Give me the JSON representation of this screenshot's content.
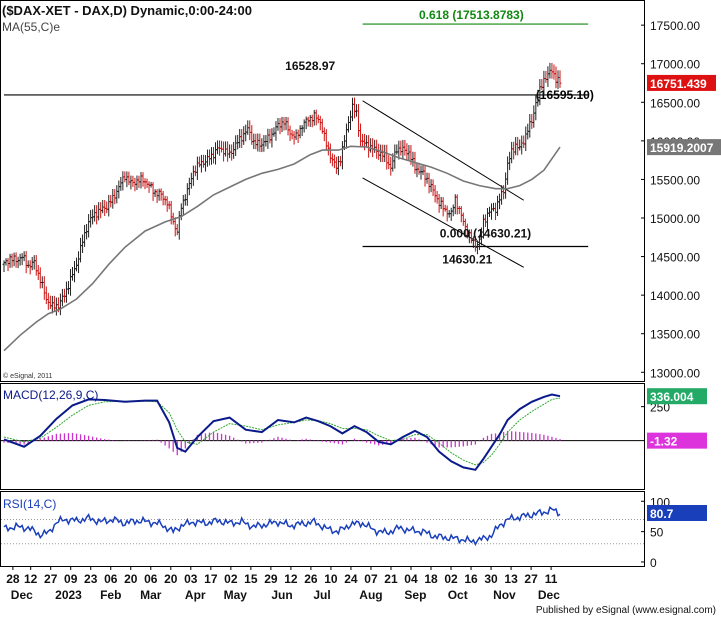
{
  "header": {
    "title": "($DAX-XET - DAX,D) Dynamic,0:00-24:00",
    "ma_label": "MA(55,C)e",
    "watermark": "© eSignal, 2011",
    "footer": "Published by eSignal (www.esignal.com)"
  },
  "chart_data": [
    {
      "panel": "price",
      "type": "ohlc",
      "ylim": [
        12900,
        17800
      ],
      "y_ticks": [
        "17500.00",
        "17000.00",
        "16500.00",
        "16000.00",
        "15500.00",
        "15000.00",
        "14500.00",
        "14000.00",
        "13500.00",
        "13000.00"
      ],
      "y_tick_values": [
        17500,
        17000,
        16500,
        16000,
        15500,
        15000,
        14500,
        14000,
        13500,
        13000
      ],
      "close_path": [
        [
          0,
          14400
        ],
        [
          3,
          14480
        ],
        [
          6,
          14450
        ],
        [
          9,
          14500
        ],
        [
          12,
          14380
        ],
        [
          15,
          14420
        ],
        [
          18,
          14200
        ],
        [
          21,
          13950
        ],
        [
          24,
          13850
        ],
        [
          27,
          13870
        ],
        [
          30,
          14000
        ],
        [
          33,
          14200
        ],
        [
          36,
          14400
        ],
        [
          39,
          14700
        ],
        [
          42,
          14950
        ],
        [
          45,
          15050
        ],
        [
          48,
          15100
        ],
        [
          51,
          15150
        ],
        [
          54,
          15250
        ],
        [
          57,
          15400
        ],
        [
          60,
          15550
        ],
        [
          63,
          15450
        ],
        [
          66,
          15480
        ],
        [
          69,
          15500
        ],
        [
          72,
          15420
        ],
        [
          75,
          15330
        ],
        [
          78,
          15300
        ],
        [
          81,
          15200
        ],
        [
          84,
          14950
        ],
        [
          86,
          14820
        ],
        [
          88,
          15150
        ],
        [
          91,
          15350
        ],
        [
          94,
          15600
        ],
        [
          97,
          15700
        ],
        [
          100,
          15740
        ],
        [
          103,
          15800
        ],
        [
          106,
          15900
        ],
        [
          109,
          15880
        ],
        [
          112,
          15820
        ],
        [
          115,
          15950
        ],
        [
          118,
          16050
        ],
        [
          121,
          16150
        ],
        [
          124,
          15980
        ],
        [
          127,
          15950
        ],
        [
          130,
          16000
        ],
        [
          133,
          16080
        ],
        [
          136,
          16200
        ],
        [
          139,
          16250
        ],
        [
          142,
          16100
        ],
        [
          145,
          16050
        ],
        [
          148,
          16200
        ],
        [
          151,
          16280
        ],
        [
          154,
          16320
        ],
        [
          157,
          16250
        ],
        [
          160,
          15950
        ],
        [
          163,
          15750
        ],
        [
          165,
          15650
        ],
        [
          167,
          15780
        ],
        [
          169,
          16000
        ],
        [
          171,
          16250
        ],
        [
          173,
          16440
        ],
        [
          175,
          16350
        ],
        [
          177,
          16000
        ],
        [
          180,
          15950
        ],
        [
          183,
          15900
        ],
        [
          186,
          15850
        ],
        [
          189,
          15800
        ],
        [
          192,
          15650
        ],
        [
          195,
          15900
        ],
        [
          198,
          15880
        ],
        [
          201,
          15850
        ],
        [
          204,
          15650
        ],
        [
          207,
          15600
        ],
        [
          210,
          15500
        ],
        [
          213,
          15350
        ],
        [
          216,
          15200
        ],
        [
          219,
          15100
        ],
        [
          222,
          15050
        ],
        [
          224,
          15250
        ],
        [
          226,
          15100
        ],
        [
          228,
          14950
        ],
        [
          230,
          14820
        ],
        [
          232,
          14720
        ],
        [
          234,
          14650
        ],
        [
          236,
          14700
        ],
        [
          238,
          14950
        ],
        [
          240,
          15050
        ],
        [
          242,
          15100
        ],
        [
          244,
          15120
        ],
        [
          246,
          15250
        ],
        [
          248,
          15350
        ],
        [
          250,
          15700
        ],
        [
          252,
          15850
        ],
        [
          254,
          15950
        ],
        [
          256,
          15900
        ],
        [
          258,
          16000
        ],
        [
          260,
          16150
        ],
        [
          262,
          16250
        ],
        [
          264,
          16500
        ],
        [
          266,
          16650
        ],
        [
          268,
          16800
        ],
        [
          270,
          16850
        ],
        [
          272,
          16920
        ],
        [
          274,
          16800
        ],
        [
          276,
          16751
        ]
      ],
      "ma55_path": [
        [
          0,
          13280
        ],
        [
          8,
          13480
        ],
        [
          16,
          13650
        ],
        [
          22,
          13760
        ],
        [
          28,
          13820
        ],
        [
          36,
          13950
        ],
        [
          44,
          14150
        ],
        [
          52,
          14400
        ],
        [
          60,
          14620
        ],
        [
          70,
          14830
        ],
        [
          80,
          14950
        ],
        [
          88,
          15020
        ],
        [
          96,
          15150
        ],
        [
          104,
          15300
        ],
        [
          112,
          15400
        ],
        [
          120,
          15500
        ],
        [
          128,
          15580
        ],
        [
          136,
          15630
        ],
        [
          144,
          15700
        ],
        [
          152,
          15820
        ],
        [
          158,
          15880
        ],
        [
          166,
          15880
        ],
        [
          172,
          15930
        ],
        [
          180,
          15920
        ],
        [
          188,
          15860
        ],
        [
          196,
          15780
        ],
        [
          204,
          15720
        ],
        [
          212,
          15660
        ],
        [
          220,
          15580
        ],
        [
          228,
          15480
        ],
        [
          236,
          15420
        ],
        [
          244,
          15380
        ],
        [
          250,
          15380
        ],
        [
          256,
          15420
        ],
        [
          262,
          15500
        ],
        [
          268,
          15620
        ],
        [
          276,
          15919
        ]
      ],
      "hlines": [
        {
          "y": 17513.8783,
          "x0": 178,
          "x1": 290,
          "color": "#118811",
          "label": "0.618 (17513.8783)"
        },
        {
          "y": 16595.1,
          "x0": 0,
          "x1": 290,
          "color": "#000000",
          "label": "(16595.10)"
        },
        {
          "y": 14630.21,
          "x0": 178,
          "x1": 290,
          "color": "#000000",
          "label": ""
        }
      ],
      "channel": [
        {
          "x0": 178,
          "y0": 16520,
          "x1": 258,
          "y1": 15230
        },
        {
          "x0": 178,
          "y0": 15520,
          "x1": 258,
          "y1": 14360
        }
      ],
      "annotations": [
        {
          "text": "16528.97",
          "x": 152,
          "y": 16920
        },
        {
          "text": "0.000 (14630.21)",
          "x": 239,
          "y": 14750
        },
        {
          "text": "14630.21",
          "x": 230,
          "y": 14410
        }
      ],
      "last_labels": [
        {
          "text": "16751.439",
          "y": 16751,
          "bg": "#dd1111"
        },
        {
          "text": "15919.2007",
          "y": 15919,
          "bg": "#777777"
        }
      ]
    },
    {
      "panel": "macd",
      "type": "line",
      "title": "MACD(12,26,9,C)",
      "ylim": [
        -420,
        420
      ],
      "y_ticks": [
        "250"
      ],
      "y_tick_values": [
        250
      ],
      "macd_path": [
        [
          0,
          -20
        ],
        [
          10,
          -80
        ],
        [
          18,
          10
        ],
        [
          26,
          150
        ],
        [
          34,
          260
        ],
        [
          42,
          310
        ],
        [
          50,
          305
        ],
        [
          60,
          290
        ],
        [
          70,
          300
        ],
        [
          76,
          300
        ],
        [
          82,
          120
        ],
        [
          86,
          -90
        ],
        [
          90,
          -120
        ],
        [
          96,
          0
        ],
        [
          104,
          130
        ],
        [
          112,
          160
        ],
        [
          120,
          60
        ],
        [
          128,
          40
        ],
        [
          136,
          140
        ],
        [
          144,
          120
        ],
        [
          150,
          160
        ],
        [
          156,
          130
        ],
        [
          162,
          90
        ],
        [
          168,
          30
        ],
        [
          174,
          90
        ],
        [
          180,
          40
        ],
        [
          186,
          -40
        ],
        [
          192,
          -60
        ],
        [
          198,
          0
        ],
        [
          204,
          50
        ],
        [
          210,
          0
        ],
        [
          216,
          -120
        ],
        [
          222,
          -200
        ],
        [
          228,
          -250
        ],
        [
          234,
          -270
        ],
        [
          238,
          -180
        ],
        [
          242,
          -80
        ],
        [
          246,
          20
        ],
        [
          250,
          140
        ],
        [
          256,
          230
        ],
        [
          262,
          290
        ],
        [
          268,
          330
        ],
        [
          272,
          350
        ],
        [
          276,
          336
        ]
      ],
      "signal_path": [
        [
          0,
          0
        ],
        [
          10,
          -40
        ],
        [
          18,
          -10
        ],
        [
          26,
          80
        ],
        [
          34,
          180
        ],
        [
          42,
          260
        ],
        [
          50,
          290
        ],
        [
          60,
          295
        ],
        [
          70,
          295
        ],
        [
          76,
          290
        ],
        [
          82,
          200
        ],
        [
          86,
          60
        ],
        [
          90,
          -40
        ],
        [
          96,
          -60
        ],
        [
          104,
          40
        ],
        [
          112,
          110
        ],
        [
          120,
          90
        ],
        [
          128,
          60
        ],
        [
          136,
          100
        ],
        [
          144,
          120
        ],
        [
          150,
          140
        ],
        [
          156,
          135
        ],
        [
          162,
          110
        ],
        [
          168,
          70
        ],
        [
          174,
          70
        ],
        [
          180,
          60
        ],
        [
          186,
          10
        ],
        [
          192,
          -30
        ],
        [
          198,
          -20
        ],
        [
          204,
          20
        ],
        [
          210,
          20
        ],
        [
          216,
          -50
        ],
        [
          222,
          -130
        ],
        [
          228,
          -190
        ],
        [
          234,
          -230
        ],
        [
          238,
          -210
        ],
        [
          242,
          -150
        ],
        [
          246,
          -60
        ],
        [
          250,
          40
        ],
        [
          256,
          140
        ],
        [
          262,
          210
        ],
        [
          268,
          270
        ],
        [
          272,
          310
        ],
        [
          276,
          320
        ]
      ],
      "zero_line": -30,
      "last_labels": [
        {
          "text": "336.004",
          "y": 336,
          "bg": "#22aa66"
        },
        {
          "text": "-1.32",
          "y": -30,
          "bg": "#dd33dd"
        }
      ]
    },
    {
      "panel": "rsi",
      "type": "line",
      "title": "RSI(14,C)",
      "ylim": [
        -5,
        112
      ],
      "y_ticks": [
        "100",
        "50",
        "0"
      ],
      "y_tick_values": [
        100,
        50,
        0
      ],
      "rsi_path": [
        [
          0,
          55
        ],
        [
          6,
          58
        ],
        [
          12,
          56
        ],
        [
          18,
          45
        ],
        [
          22,
          48
        ],
        [
          26,
          65
        ],
        [
          30,
          70
        ],
        [
          36,
          68
        ],
        [
          42,
          72
        ],
        [
          48,
          66
        ],
        [
          54,
          70
        ],
        [
          60,
          64
        ],
        [
          66,
          68
        ],
        [
          72,
          66
        ],
        [
          78,
          62
        ],
        [
          84,
          50
        ],
        [
          88,
          60
        ],
        [
          94,
          66
        ],
        [
          100,
          64
        ],
        [
          106,
          68
        ],
        [
          112,
          64
        ],
        [
          118,
          66
        ],
        [
          124,
          58
        ],
        [
          130,
          62
        ],
        [
          136,
          66
        ],
        [
          142,
          60
        ],
        [
          148,
          63
        ],
        [
          154,
          66
        ],
        [
          160,
          55
        ],
        [
          166,
          50
        ],
        [
          172,
          62
        ],
        [
          178,
          64
        ],
        [
          184,
          52
        ],
        [
          190,
          48
        ],
        [
          196,
          56
        ],
        [
          202,
          52
        ],
        [
          208,
          50
        ],
        [
          214,
          42
        ],
        [
          220,
          40
        ],
        [
          226,
          38
        ],
        [
          232,
          34
        ],
        [
          238,
          38
        ],
        [
          242,
          44
        ],
        [
          246,
          60
        ],
        [
          250,
          70
        ],
        [
          256,
          74
        ],
        [
          262,
          78
        ],
        [
          268,
          82
        ],
        [
          272,
          86
        ],
        [
          276,
          80.7
        ]
      ],
      "ref_levels": [
        70,
        30
      ],
      "last_labels": [
        {
          "text": "80.7",
          "y": 80.7,
          "bg": "#1a3fbb"
        }
      ]
    }
  ],
  "x_axis": {
    "tick_labels": [
      {
        "text": "28",
        "x": 4
      },
      {
        "text": "12",
        "x": 12
      },
      {
        "text": "27",
        "x": 21
      },
      {
        "text": "09",
        "x": 30
      },
      {
        "text": "23",
        "x": 39
      },
      {
        "text": "06",
        "x": 48
      },
      {
        "text": "20",
        "x": 57
      },
      {
        "text": "06",
        "x": 66
      },
      {
        "text": "20",
        "x": 75
      },
      {
        "text": "03",
        "x": 84
      },
      {
        "text": "17",
        "x": 93
      },
      {
        "text": "02",
        "x": 102
      },
      {
        "text": "15",
        "x": 111
      },
      {
        "text": "29",
        "x": 120
      },
      {
        "text": "12",
        "x": 129
      },
      {
        "text": "26",
        "x": 138
      },
      {
        "text": "10",
        "x": 147
      },
      {
        "text": "24",
        "x": 156
      },
      {
        "text": "07",
        "x": 165
      },
      {
        "text": "21",
        "x": 174
      },
      {
        "text": "04",
        "x": 183
      },
      {
        "text": "18",
        "x": 192
      },
      {
        "text": "02",
        "x": 201
      },
      {
        "text": "16",
        "x": 210
      },
      {
        "text": "30",
        "x": 219
      },
      {
        "text": "13",
        "x": 228
      },
      {
        "text": "27",
        "x": 237
      },
      {
        "text": "11",
        "x": 246
      }
    ],
    "month_labels": [
      {
        "text": "Dec",
        "x": 8
      },
      {
        "text": "2023",
        "x": 29
      },
      {
        "text": "Feb",
        "x": 48
      },
      {
        "text": "Mar",
        "x": 66
      },
      {
        "text": "Apr",
        "x": 86
      },
      {
        "text": "May",
        "x": 104
      },
      {
        "text": "Jun",
        "x": 125
      },
      {
        "text": "Jul",
        "x": 143
      },
      {
        "text": "Aug",
        "x": 165
      },
      {
        "text": "Sep",
        "x": 185
      },
      {
        "text": "Oct",
        "x": 204
      },
      {
        "text": "Nov",
        "x": 225
      },
      {
        "text": "Dec",
        "x": 245
      }
    ]
  },
  "colors": {
    "price_up": "#222222",
    "price_down": "#cc1111",
    "ma": "#777777",
    "macd": "#0a1a8a",
    "signal": "#33aa33",
    "histogram": "#cc33cc",
    "rsi": "#1a3fbb",
    "fib": "#118811"
  }
}
